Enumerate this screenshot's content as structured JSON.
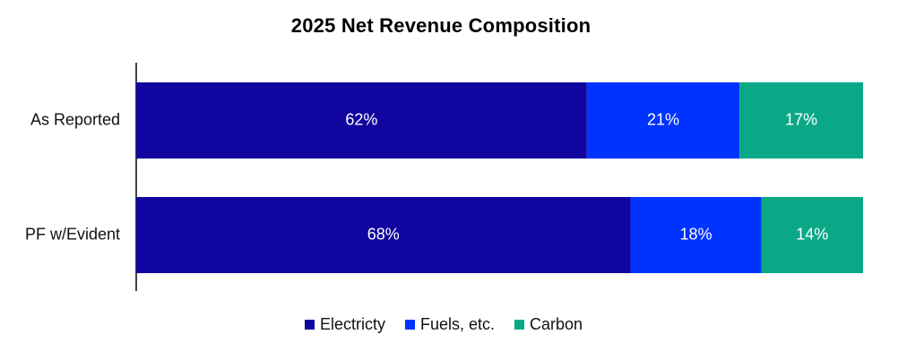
{
  "chart_data": {
    "type": "bar",
    "orientation": "horizontal",
    "stacked": true,
    "title": "2025 Net Revenue Composition",
    "categories": [
      "As Reported",
      "PF w/Evident"
    ],
    "series": [
      {
        "name": "Electricty",
        "values": [
          62,
          68
        ],
        "labels": [
          "62%",
          "68%"
        ],
        "color": "#10069F"
      },
      {
        "name": "Fuels, etc.",
        "values": [
          21,
          18
        ],
        "labels": [
          "21%",
          "18%"
        ],
        "color": "#0033FF"
      },
      {
        "name": "Carbon",
        "values": [
          17,
          14
        ],
        "labels": [
          "17%",
          "14%"
        ],
        "color": "#0AA886"
      }
    ],
    "xlim": [
      0,
      100
    ],
    "grid": false,
    "legend_position": "bottom"
  }
}
